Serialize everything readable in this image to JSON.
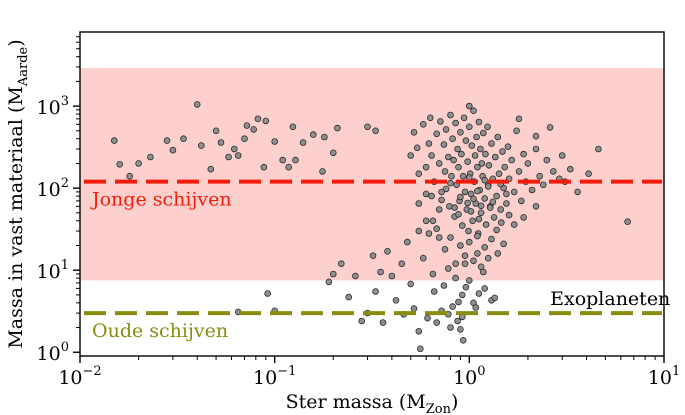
{
  "chart_data": {
    "type": "scatter",
    "title": "",
    "xlabel": {
      "main": "Ster massa (M",
      "sub": "Zon",
      "tail": ")"
    },
    "ylabel": {
      "main": "Massa in vast materiaal (M",
      "sub": "Aarde",
      "tail": ")"
    },
    "xscale": "log",
    "yscale": "log",
    "xlim": [
      0.01,
      10
    ],
    "ylim": [
      0.9,
      8000
    ],
    "x_ticks": [
      {
        "value": 0.01,
        "base": "10",
        "exp": "−2"
      },
      {
        "value": 0.1,
        "base": "10",
        "exp": "−1"
      },
      {
        "value": 1,
        "base": "10",
        "exp": "0"
      },
      {
        "value": 10,
        "base": "10",
        "exp": "1"
      }
    ],
    "y_ticks": [
      {
        "value": 1,
        "base": "10",
        "exp": "0"
      },
      {
        "value": 10,
        "base": "10",
        "exp": "1"
      },
      {
        "value": 100,
        "base": "10",
        "exp": "2"
      },
      {
        "value": 1000,
        "base": "10",
        "exp": "3"
      }
    ],
    "grid": false,
    "shaded_band": {
      "y_range": [
        7.5,
        2900
      ],
      "color": "#fdd0cd"
    },
    "reference_lines": [
      {
        "label": "Jonge schijven",
        "y": 120,
        "color": "#f41d0c",
        "style": "dashed"
      },
      {
        "label": "Oude schijven",
        "y": 3.0,
        "color": "#8a8c10",
        "style": "dashed"
      }
    ],
    "annotations": [
      {
        "text": "Exoplaneten",
        "x": 2.6,
        "y": 4.6,
        "color": "#000000"
      }
    ],
    "colors": {
      "point_fill": "#8f8f8f",
      "point_edge": "#2a2a2a"
    },
    "series": [
      {
        "points": [
          [
            0.015,
            380
          ],
          [
            0.016,
            195
          ],
          [
            0.018,
            140
          ],
          [
            0.02,
            200
          ],
          [
            0.023,
            240
          ],
          [
            0.028,
            380
          ],
          [
            0.03,
            290
          ],
          [
            0.034,
            400
          ],
          [
            0.04,
            1050
          ],
          [
            0.042,
            330
          ],
          [
            0.047,
            170
          ],
          [
            0.05,
            500
          ],
          [
            0.053,
            360
          ],
          [
            0.058,
            240
          ],
          [
            0.062,
            300
          ],
          [
            0.065,
            250
          ],
          [
            0.07,
            400
          ],
          [
            0.072,
            580
          ],
          [
            0.078,
            520
          ],
          [
            0.082,
            700
          ],
          [
            0.088,
            180
          ],
          [
            0.09,
            660
          ],
          [
            0.1,
            370
          ],
          [
            0.11,
            220
          ],
          [
            0.118,
            180
          ],
          [
            0.124,
            560
          ],
          [
            0.128,
            220
          ],
          [
            0.14,
            360
          ],
          [
            0.158,
            450
          ],
          [
            0.176,
            160
          ],
          [
            0.18,
            420
          ],
          [
            0.2,
            270
          ],
          [
            0.21,
            540
          ],
          [
            0.3,
            560
          ],
          [
            0.33,
            500
          ],
          [
            0.092,
            5.2
          ],
          [
            0.1,
            3.2
          ],
          [
            0.065,
            3.1
          ],
          [
            0.19,
            7.2
          ],
          [
            0.2,
            9.0
          ],
          [
            0.22,
            12
          ],
          [
            0.24,
            4.7
          ],
          [
            0.26,
            8.5
          ],
          [
            0.28,
            2.4
          ],
          [
            0.3,
            3.0
          ],
          [
            0.32,
            15
          ],
          [
            0.33,
            5.5
          ],
          [
            0.35,
            9.5
          ],
          [
            0.36,
            2.3
          ],
          [
            0.38,
            17
          ],
          [
            0.4,
            8.5
          ],
          [
            0.42,
            4.3
          ],
          [
            0.45,
            12
          ],
          [
            0.46,
            2.9
          ],
          [
            0.48,
            22
          ],
          [
            0.5,
            6.8
          ],
          [
            0.52,
            3.4
          ],
          [
            0.55,
            30
          ],
          [
            0.55,
            1.8
          ],
          [
            0.56,
            1.1
          ],
          [
            0.58,
            14
          ],
          [
            0.6,
            40
          ],
          [
            0.61,
            2.6
          ],
          [
            0.64,
            80
          ],
          [
            0.65,
            9.0
          ],
          [
            0.66,
            5.5
          ],
          [
            0.68,
            2.3
          ],
          [
            0.7,
            25
          ],
          [
            0.72,
            3.2
          ],
          [
            0.74,
            6.5
          ],
          [
            0.78,
            2.9
          ],
          [
            0.8,
            2.0
          ],
          [
            0.82,
            3.6
          ],
          [
            0.85,
            8.0
          ],
          [
            0.88,
            4.1
          ],
          [
            0.9,
            1.9
          ],
          [
            0.92,
            5.0
          ],
          [
            0.95,
            12
          ],
          [
            1.0,
            7.5
          ],
          [
            1.05,
            4.0
          ],
          [
            1.1,
            16
          ],
          [
            1.2,
            6.0
          ],
          [
            1.3,
            4.3
          ],
          [
            1.35,
            4.6
          ],
          [
            0.5,
            250
          ],
          [
            0.52,
            480
          ],
          [
            0.54,
            310
          ],
          [
            0.55,
            150
          ],
          [
            0.58,
            600
          ],
          [
            0.6,
            180
          ],
          [
            0.62,
            350
          ],
          [
            0.63,
            720
          ],
          [
            0.64,
            250
          ],
          [
            0.66,
            120
          ],
          [
            0.68,
            460
          ],
          [
            0.7,
            200
          ],
          [
            0.71,
            650
          ],
          [
            0.72,
            90
          ],
          [
            0.74,
            340
          ],
          [
            0.75,
            160
          ],
          [
            0.76,
            520
          ],
          [
            0.78,
            240
          ],
          [
            0.79,
            60
          ],
          [
            0.8,
            780
          ],
          [
            0.81,
            140
          ],
          [
            0.82,
            400
          ],
          [
            0.83,
            220
          ],
          [
            0.84,
            45
          ],
          [
            0.85,
            620
          ],
          [
            0.86,
            110
          ],
          [
            0.87,
            300
          ],
          [
            0.88,
            180
          ],
          [
            0.89,
            70
          ],
          [
            0.9,
            480
          ],
          [
            0.91,
            260
          ],
          [
            0.92,
            35
          ],
          [
            0.93,
            140
          ],
          [
            0.94,
            720
          ],
          [
            0.95,
            90
          ],
          [
            0.96,
            380
          ],
          [
            0.97,
            55
          ],
          [
            0.98,
            210
          ],
          [
            0.99,
            30
          ],
          [
            1.0,
            560
          ],
          [
            1.01,
            150
          ],
          [
            1.02,
            85
          ],
          [
            1.03,
            330
          ],
          [
            1.04,
            40
          ],
          [
            1.05,
            880
          ],
          [
            1.06,
            120
          ],
          [
            1.07,
            250
          ],
          [
            1.08,
            65
          ],
          [
            1.09,
            420
          ],
          [
            1.1,
            180
          ],
          [
            1.11,
            28
          ],
          [
            1.12,
            640
          ],
          [
            1.13,
            95
          ],
          [
            1.14,
            300
          ],
          [
            1.15,
            50
          ],
          [
            1.16,
            200
          ],
          [
            1.17,
            140
          ],
          [
            1.18,
            470
          ],
          [
            1.2,
            75
          ],
          [
            1.21,
            260
          ],
          [
            1.22,
            36
          ],
          [
            1.24,
            560
          ],
          [
            1.25,
            110
          ],
          [
            1.26,
            190
          ],
          [
            1.28,
            60
          ],
          [
            1.3,
            350
          ],
          [
            1.32,
            130
          ],
          [
            1.34,
            44
          ],
          [
            1.36,
            240
          ],
          [
            1.38,
            80
          ],
          [
            1.4,
            420
          ],
          [
            1.42,
            150
          ],
          [
            1.45,
            55
          ],
          [
            1.48,
            280
          ],
          [
            1.5,
            100
          ],
          [
            1.52,
            180
          ],
          [
            1.55,
            65
          ],
          [
            1.58,
            320
          ],
          [
            1.6,
            130
          ],
          [
            1.65,
            220
          ],
          [
            1.7,
            90
          ],
          [
            1.75,
            500
          ],
          [
            1.8,
            160
          ],
          [
            1.85,
            70
          ],
          [
            1.9,
            260
          ],
          [
            1.95,
            120
          ],
          [
            2.0,
            200
          ],
          [
            2.1,
            95
          ],
          [
            2.2,
            300
          ],
          [
            2.3,
            140
          ],
          [
            2.4,
            110
          ],
          [
            2.5,
            220
          ],
          [
            2.7,
            160
          ],
          [
            2.9,
            130
          ],
          [
            3.0,
            250
          ],
          [
            3.1,
            120
          ],
          [
            3.3,
            170
          ],
          [
            3.6,
            90
          ],
          [
            4.1,
            150
          ],
          [
            0.75,
            18
          ],
          [
            0.8,
            25
          ],
          [
            0.85,
            12
          ],
          [
            0.9,
            20
          ],
          [
            0.95,
            15
          ],
          [
            1.0,
            22
          ],
          [
            1.05,
            13
          ],
          [
            1.1,
            26
          ],
          [
            1.15,
            11
          ],
          [
            1.2,
            19
          ],
          [
            1.25,
            14
          ],
          [
            1.3,
            24
          ],
          [
            1.4,
            16
          ],
          [
            1.5,
            21
          ],
          [
            0.65,
            40
          ],
          [
            0.7,
            55
          ],
          [
            0.88,
            48
          ],
          [
            1.02,
            52
          ],
          [
            1.12,
            42
          ],
          [
            1.28,
            58
          ],
          [
            1.46,
            38
          ],
          [
            1.6,
            47
          ],
          [
            0.62,
            28
          ],
          [
            0.68,
            32
          ],
          [
            0.92,
            2.7
          ],
          [
            1.08,
            3.5
          ],
          [
            0.96,
            6.2
          ],
          [
            1.18,
            9.5
          ],
          [
            0.78,
            10.5
          ],
          [
            1.38,
            31
          ],
          [
            1.7,
            36
          ],
          [
            1.9,
            44
          ],
          [
            2.2,
            60
          ],
          [
            0.55,
            65
          ],
          [
            0.6,
            85
          ],
          [
            1.0,
            1000
          ],
          [
            0.93,
            1.4
          ],
          [
            0.87,
            2.4
          ],
          [
            1.12,
            5.2
          ],
          [
            0.72,
            72
          ],
          [
            1.32,
            68
          ],
          [
            1.55,
            85
          ],
          [
            0.8,
            115
          ],
          [
            1.2,
            125
          ],
          [
            1.0,
            135
          ],
          [
            0.9,
            78
          ],
          [
            1.1,
            92
          ],
          [
            0.76,
            98
          ],
          [
            1.25,
            105
          ],
          [
            1.45,
            112
          ],
          [
            0.98,
            66
          ],
          [
            1.05,
            74
          ],
          [
            0.84,
            58
          ],
          [
            1.15,
            61
          ],
          [
            6.5,
            39
          ],
          [
            4.6,
            300
          ],
          [
            2.2,
            430
          ],
          [
            2.6,
            550
          ],
          [
            1.8,
            700
          ]
        ]
      }
    ]
  }
}
